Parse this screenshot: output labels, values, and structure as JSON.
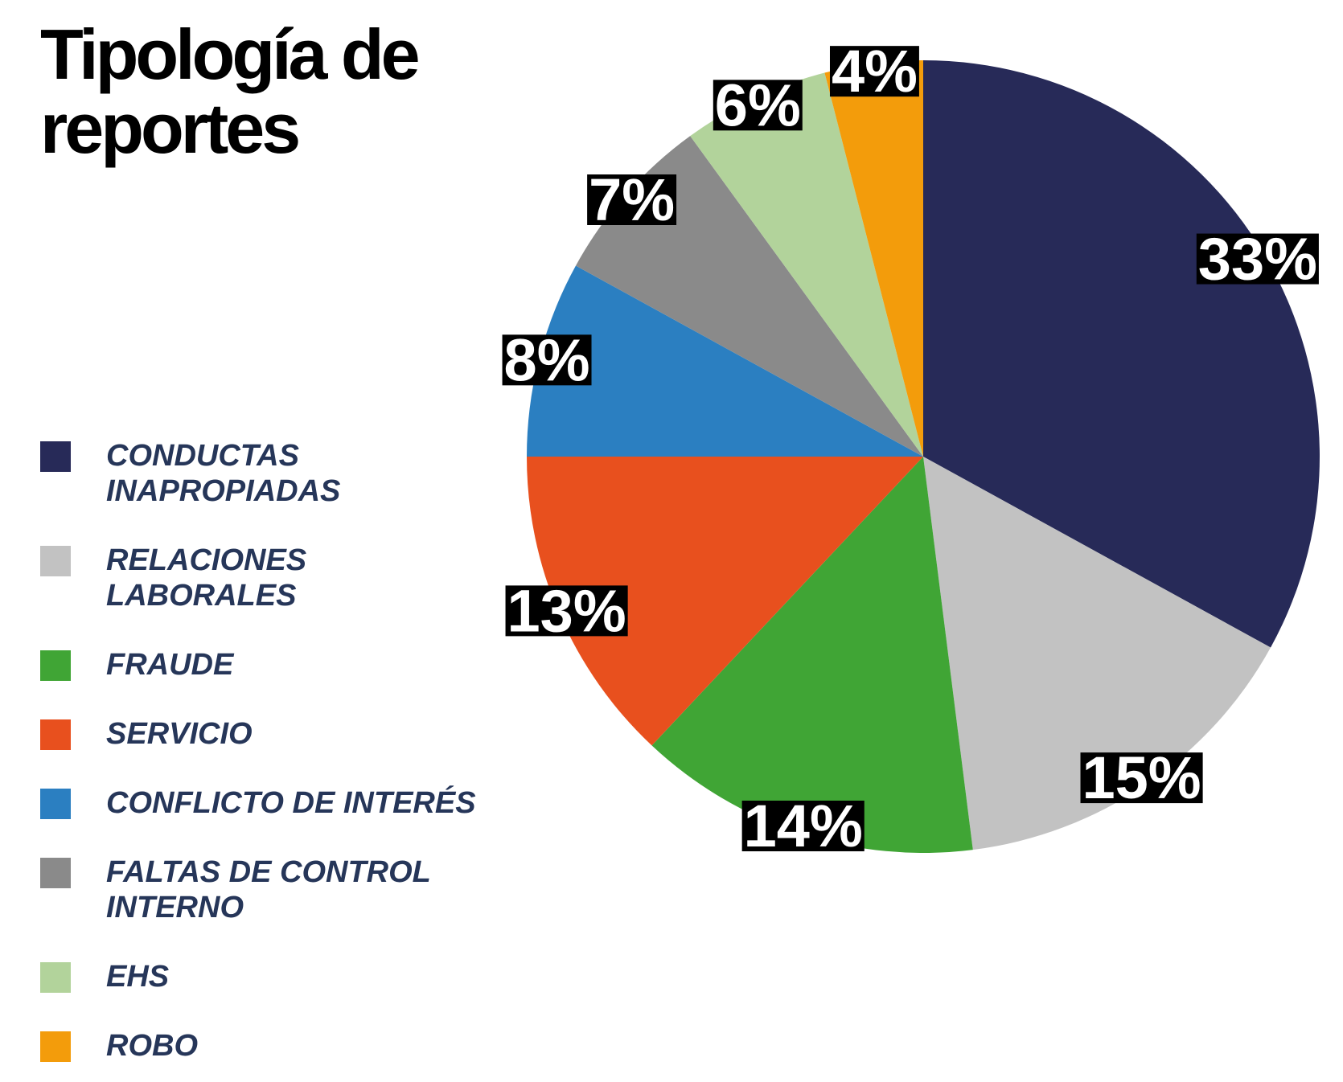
{
  "chart_data": {
    "type": "pie",
    "title": "Tipología de\nreportes",
    "categories": [
      "CONDUCTAS\nINAPROPIADAS",
      "RELACIONES\nLABORALES",
      "FRAUDE",
      "SERVICIO",
      "CONFLICTO DE INTERÉS",
      "FALTAS DE CONTROL\nINTERNO",
      "EHS",
      "ROBO"
    ],
    "values": [
      33,
      15,
      14,
      13,
      8,
      7,
      6,
      4
    ],
    "value_labels": [
      "33%",
      "15%",
      "14%",
      "13%",
      "8%",
      "7%",
      "6%",
      "4%"
    ],
    "colors": [
      "#272a58",
      "#c2c2c2",
      "#40a535",
      "#e8501e",
      "#2b7fc1",
      "#8a8a8a",
      "#b2d39b",
      "#f39c0b"
    ]
  }
}
